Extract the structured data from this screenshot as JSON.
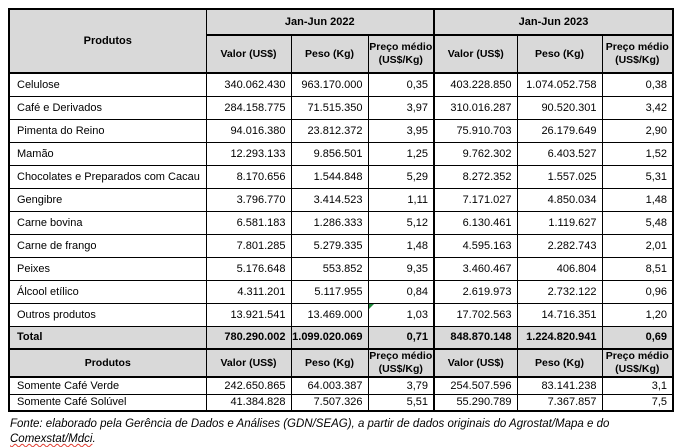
{
  "header": {
    "products_label": "Produtos",
    "periods": [
      "Jan-Jun 2022",
      "Jan-Jun 2023"
    ],
    "columns": [
      "Valor (US$)",
      "Peso (Kg)",
      "Preço médio (US$/Kg)"
    ]
  },
  "rows": [
    {
      "produto": "Celulose",
      "cells": [
        "340.062.430",
        "963.170.000",
        "0,35",
        "403.228.850",
        "1.074.052.758",
        "0,38"
      ]
    },
    {
      "produto": "Café e Derivados",
      "cells": [
        "284.158.775",
        "71.515.350",
        "3,97",
        "310.016.287",
        "90.520.301",
        "3,42"
      ]
    },
    {
      "produto": "Pimenta do Reino",
      "cells": [
        "94.016.380",
        "23.812.372",
        "3,95",
        "75.910.703",
        "26.179.649",
        "2,90"
      ]
    },
    {
      "produto": "Mamão",
      "cells": [
        "12.293.133",
        "9.856.501",
        "1,25",
        "9.762.302",
        "6.403.527",
        "1,52"
      ]
    },
    {
      "produto": "Chocolates e Preparados com Cacau",
      "cells": [
        "8.170.656",
        "1.544.848",
        "5,29",
        "8.272.352",
        "1.557.025",
        "5,31"
      ]
    },
    {
      "produto": "Gengibre",
      "cells": [
        "3.796.770",
        "3.414.523",
        "1,11",
        "7.171.027",
        "4.850.034",
        "1,48"
      ]
    },
    {
      "produto": "Carne bovina",
      "cells": [
        "6.581.183",
        "1.286.333",
        "5,12",
        "6.130.461",
        "1.119.627",
        "5,48"
      ]
    },
    {
      "produto": "Carne de frango",
      "cells": [
        "7.801.285",
        "5.279.335",
        "1,48",
        "4.595.163",
        "2.282.743",
        "2,01"
      ]
    },
    {
      "produto": "Peixes",
      "cells": [
        "5.176.648",
        "553.852",
        "9,35",
        "3.460.467",
        "406.804",
        "8,51"
      ]
    },
    {
      "produto": "Álcool etílico",
      "cells": [
        "4.311.201",
        "5.117.955",
        "0,84",
        "2.619.973",
        "2.732.122",
        "0,96"
      ]
    },
    {
      "produto": "Outros produtos",
      "cells": [
        "13.921.541",
        "13.469.000",
        "1,03",
        "17.702.563",
        "14.716.351",
        "1,20"
      ]
    }
  ],
  "total": {
    "label": "Total",
    "cells": [
      "780.290.002",
      "1.099.020.069",
      "0,71",
      "848.870.148",
      "1.224.820.941",
      "0,69"
    ]
  },
  "sub_table": {
    "rows": [
      {
        "produto": "Somente Café Verde",
        "cells": [
          "242.650.865",
          "64.003.387",
          "3,79",
          "254.507.596",
          "83.141.238",
          "3,1"
        ]
      },
      {
        "produto": "Somente Café Solúvel",
        "cells": [
          "41.384.828",
          "7.507.326",
          "5,51",
          "55.290.789",
          "7.367.857",
          "7,5"
        ]
      }
    ]
  },
  "footer": {
    "line1": "Fonte: elaborado pela Gerência de Dados e Análises (GDN/SEAG), a partir de dados originais do Agrostat/Mapa e do",
    "line2_word": "Comexstat/Mdci",
    "line2_suffix": "."
  },
  "colors": {
    "header_bg": "#d9d9d9",
    "border": "#000000",
    "marker_green": "#1f8a3b",
    "spellcheck_red": "#e03c31"
  }
}
